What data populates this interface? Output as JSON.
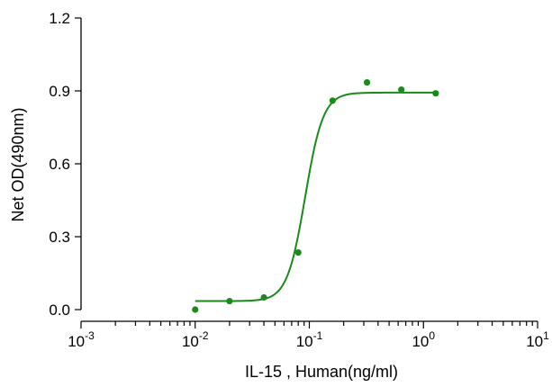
{
  "chart_data": {
    "type": "scatter",
    "xlabel": "IL-15 , Human(ng/ml)",
    "ylabel": "Net OD(490nm)",
    "xscale": "log",
    "xlim": [
      0.001,
      10
    ],
    "ylim": [
      0,
      1.2
    ],
    "y_ticks": [
      "0.0",
      "0.3",
      "0.6",
      "0.9",
      "1.2"
    ],
    "x_ticks": [
      {
        "base": "10",
        "exp": "-3",
        "value": 0.001
      },
      {
        "base": "10",
        "exp": "-2",
        "value": 0.01
      },
      {
        "base": "10",
        "exp": "-1",
        "value": 0.1
      },
      {
        "base": "10",
        "exp": "0",
        "value": 1
      },
      {
        "base": "10",
        "exp": "1",
        "value": 10
      }
    ],
    "grid": false,
    "series": [
      {
        "color": "#1a8a1a",
        "points": [
          {
            "x": 0.01,
            "y": 0.0
          },
          {
            "x": 0.02,
            "y": 0.035
          },
          {
            "x": 0.04,
            "y": 0.05
          },
          {
            "x": 0.08,
            "y": 0.235
          },
          {
            "x": 0.16,
            "y": 0.86
          },
          {
            "x": 0.32,
            "y": 0.935
          },
          {
            "x": 0.64,
            "y": 0.905
          },
          {
            "x": 1.28,
            "y": 0.89
          }
        ],
        "fit": {
          "model": "4PL",
          "bottom": 0.035,
          "top": 0.893,
          "ec50": 0.092,
          "hill": 5.5,
          "x_from": 0.01,
          "x_to": 1.28
        }
      }
    ]
  }
}
